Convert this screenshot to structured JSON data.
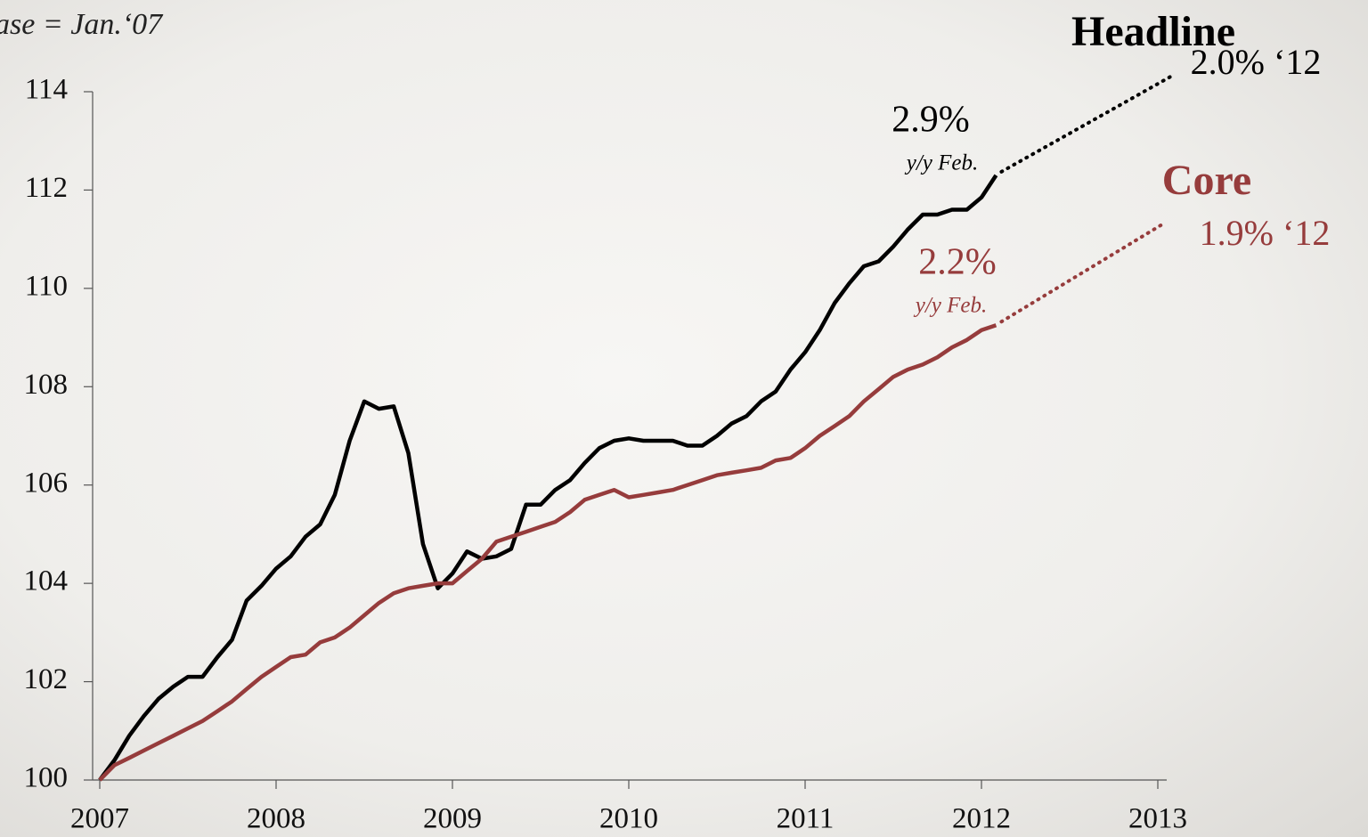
{
  "chart_data": {
    "type": "line",
    "annotations": {
      "base": "ase = Jan.‘07",
      "headline_forecast": "2.0% ‘12",
      "headline_latest": "2.9%",
      "headline_latest_note": "y/y Feb.",
      "core_forecast": "1.9% ‘12",
      "core_latest": "2.2%",
      "core_latest_note": "y/y Feb."
    },
    "x": [
      2007,
      2007.083,
      2007.167,
      2007.25,
      2007.333,
      2007.417,
      2007.5,
      2007.583,
      2007.667,
      2007.75,
      2007.833,
      2007.917,
      2008,
      2008.083,
      2008.167,
      2008.25,
      2008.333,
      2008.417,
      2008.5,
      2008.583,
      2008.667,
      2008.75,
      2008.833,
      2008.917,
      2009,
      2009.083,
      2009.167,
      2009.25,
      2009.333,
      2009.417,
      2009.5,
      2009.583,
      2009.667,
      2009.75,
      2009.833,
      2009.917,
      2010,
      2010.083,
      2010.167,
      2010.25,
      2010.333,
      2010.417,
      2010.5,
      2010.583,
      2010.667,
      2010.75,
      2010.833,
      2010.917,
      2011,
      2011.083,
      2011.167,
      2011.25,
      2011.333,
      2011.417,
      2011.5,
      2011.583,
      2011.667,
      2011.75,
      2011.833,
      2011.917,
      2012,
      2012.083
    ],
    "series": [
      {
        "name": "Headline",
        "color": "#000000",
        "values": [
          100,
          100.4,
          100.9,
          101.3,
          101.65,
          101.9,
          102.1,
          102.1,
          102.5,
          102.85,
          103.65,
          103.95,
          104.3,
          104.55,
          104.95,
          105.2,
          105.8,
          106.9,
          107.7,
          107.55,
          107.6,
          106.65,
          104.8,
          103.9,
          104.2,
          104.65,
          104.5,
          104.55,
          104.7,
          105.6,
          105.6,
          105.9,
          106.1,
          106.45,
          106.75,
          106.9,
          106.95,
          106.9,
          106.9,
          106.9,
          106.8,
          106.8,
          107.0,
          107.25,
          107.4,
          107.7,
          107.9,
          108.35,
          108.7,
          109.15,
          109.7,
          110.1,
          110.45,
          110.55,
          110.85,
          111.2,
          111.5,
          111.5,
          111.6,
          111.6,
          111.85,
          112.3
        ]
      },
      {
        "name": "Core",
        "color": "#963c3c",
        "values": [
          100,
          100.3,
          100.45,
          100.6,
          100.75,
          100.9,
          101.05,
          101.2,
          101.4,
          101.6,
          101.85,
          102.1,
          102.3,
          102.5,
          102.55,
          102.8,
          102.9,
          103.1,
          103.35,
          103.6,
          103.8,
          103.9,
          103.95,
          104.0,
          104.0,
          104.25,
          104.5,
          104.85,
          104.95,
          105.05,
          105.15,
          105.25,
          105.45,
          105.7,
          105.8,
          105.9,
          105.75,
          105.8,
          105.85,
          105.9,
          106.0,
          106.1,
          106.2,
          106.25,
          106.3,
          106.35,
          106.5,
          106.55,
          106.75,
          107.0,
          107.2,
          107.4,
          107.7,
          107.95,
          108.2,
          108.35,
          108.45,
          108.6,
          108.8,
          108.95,
          109.15,
          109.25
        ]
      }
    ],
    "xlim": [
      2007,
      2013
    ],
    "xticks": [
      2007,
      2008,
      2009,
      2010,
      2011,
      2012,
      2013
    ],
    "ylim": [
      100,
      114
    ],
    "yticks": [
      100,
      102,
      104,
      106,
      108,
      110,
      112,
      114
    ],
    "grid": false
  }
}
